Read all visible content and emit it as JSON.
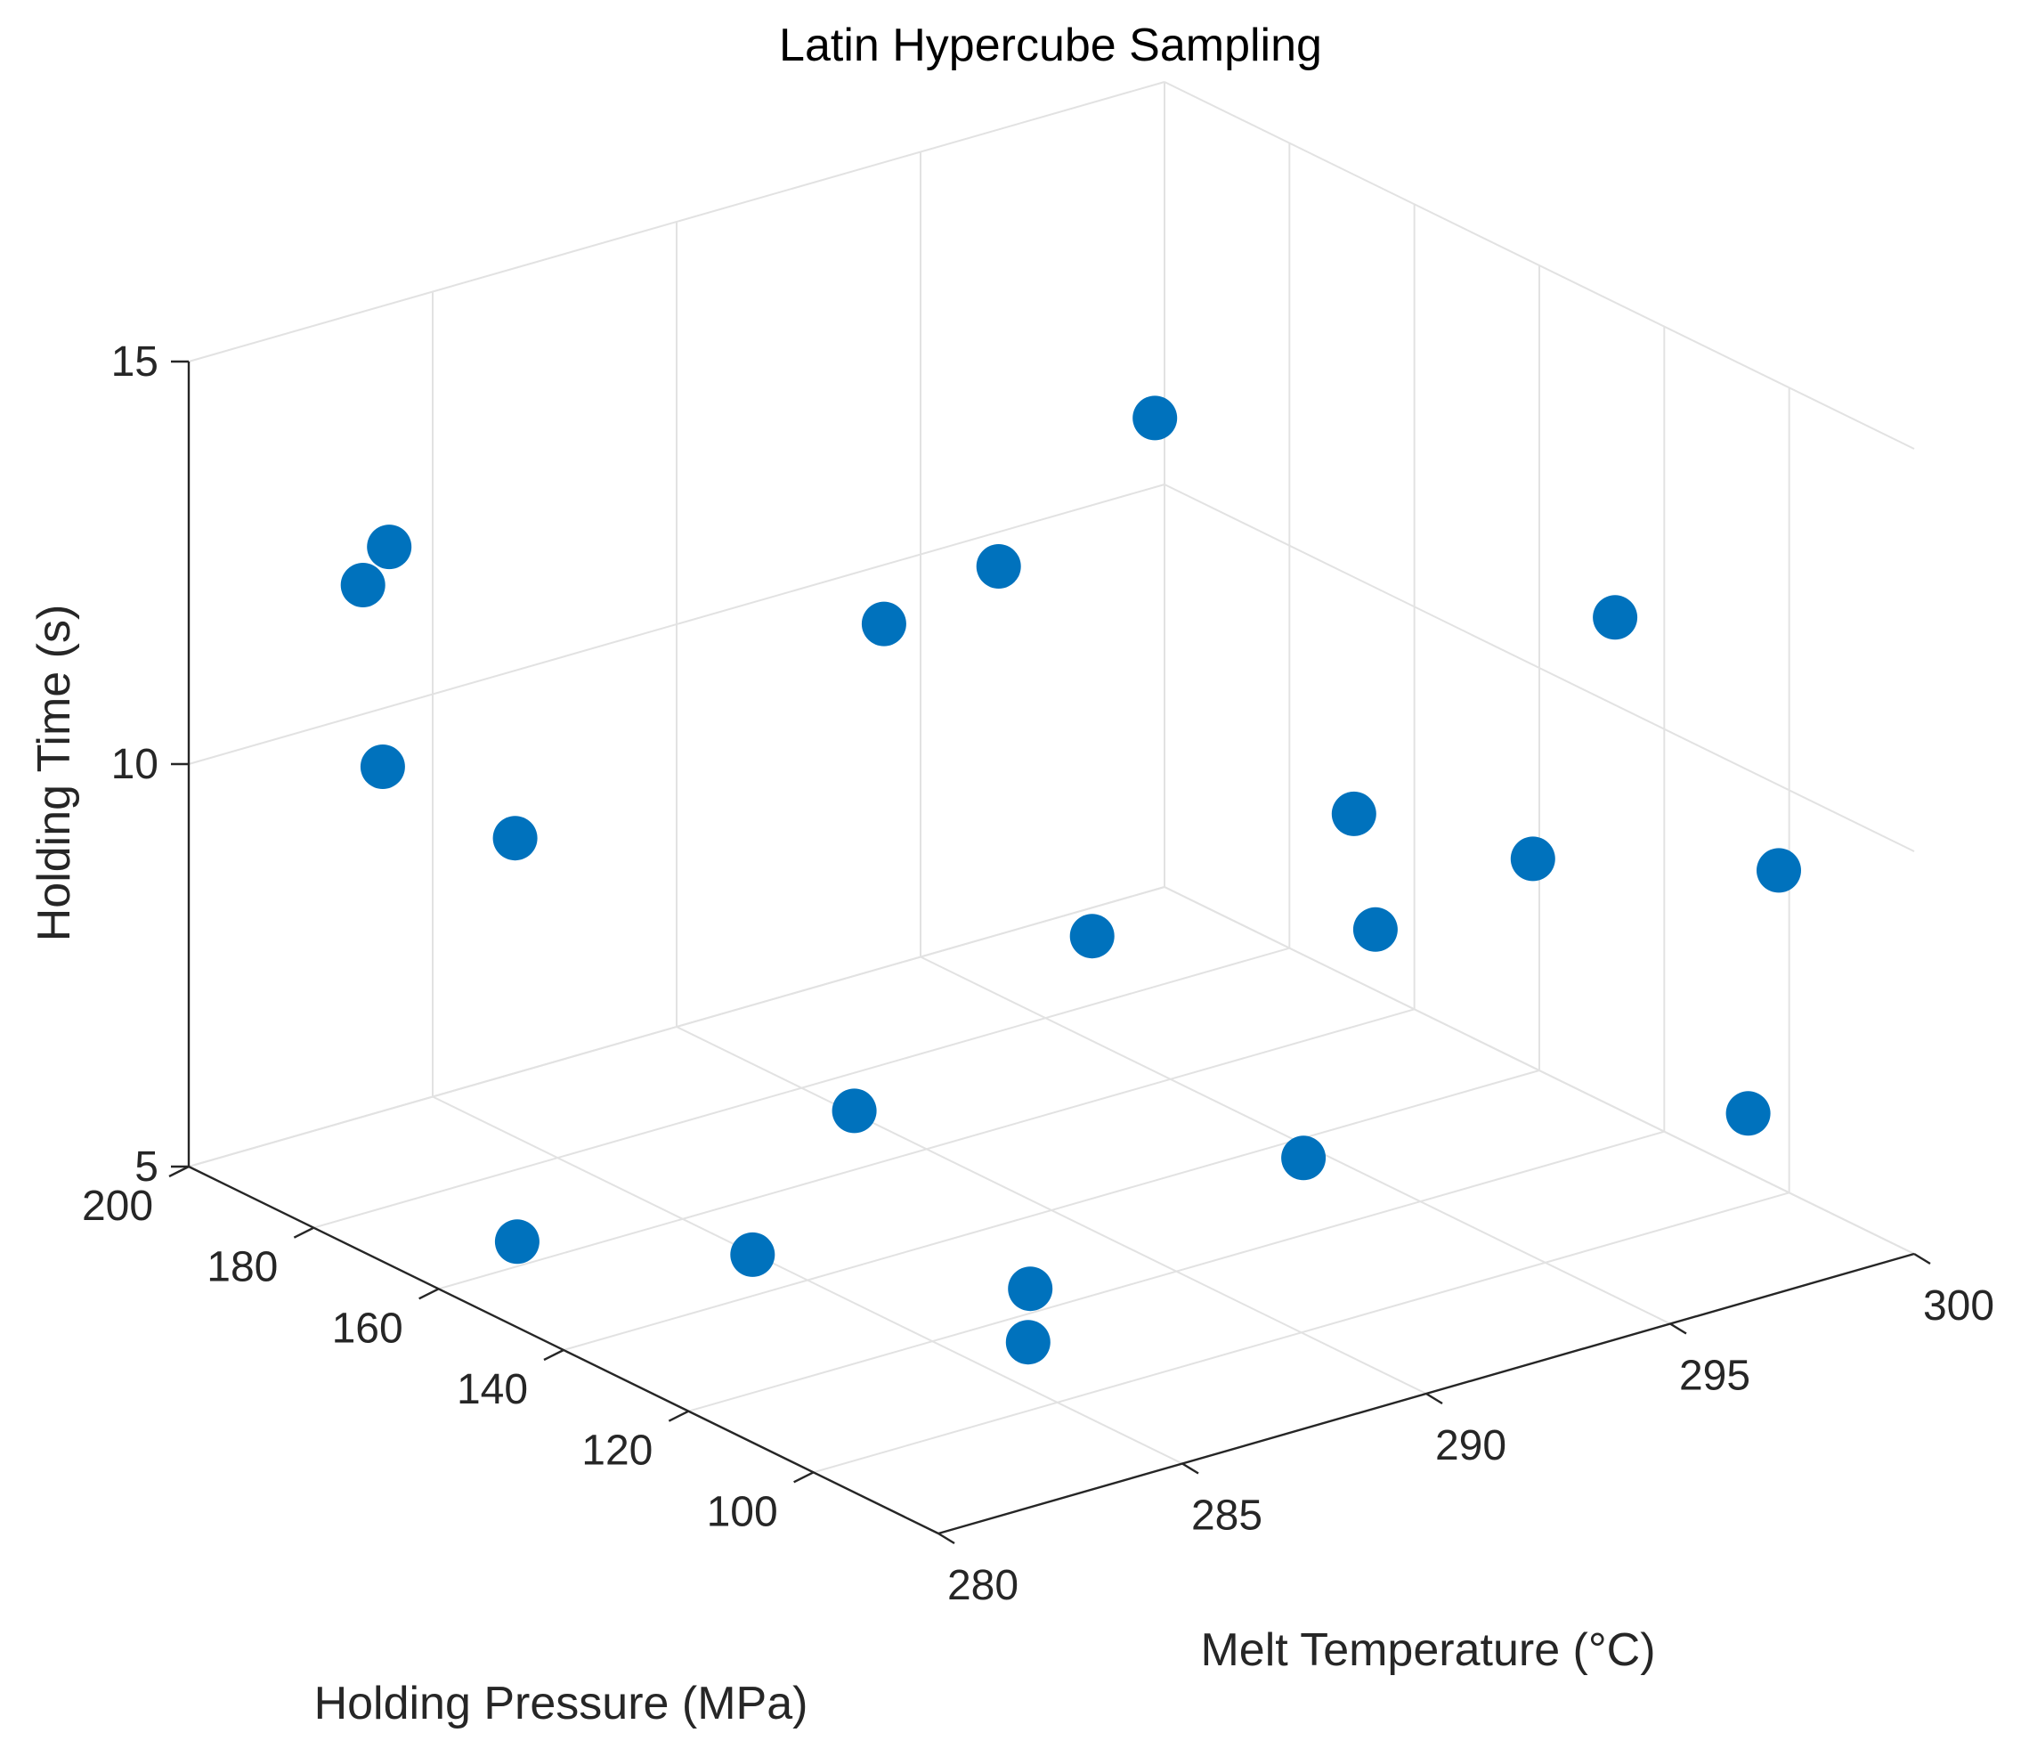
{
  "chart_data": {
    "type": "scatter3d",
    "title": "Latin Hypercube Sampling",
    "xlabel": "Melt Temperature (°C)",
    "ylabel": "Holding Pressure (MPa)",
    "zlabel": "Holding Time (s)",
    "xlim": [
      280,
      300
    ],
    "ylim": [
      80,
      200
    ],
    "zlim": [
      5,
      15
    ],
    "xticks": [
      280,
      285,
      290,
      295,
      300
    ],
    "yticks": [
      100,
      120,
      140,
      160,
      180,
      200
    ],
    "zticks": [
      5,
      10,
      15
    ],
    "xtick_labels": [
      "280",
      "285",
      "290",
      "295",
      "300"
    ],
    "ytick_labels": [
      "100",
      "120",
      "140",
      "160",
      "180",
      "200"
    ],
    "ztick_labels": [
      "5",
      "10",
      "15"
    ],
    "grid": true,
    "marker_color": "#0072BD",
    "points": [
      {
        "x": 280.6,
        "y": 176.8,
        "z": 13.0
      },
      {
        "x": 281.1,
        "y": 176.5,
        "z": 13.4
      },
      {
        "x": 281.8,
        "y": 183.0,
        "z": 10.3
      },
      {
        "x": 282.9,
        "y": 170.4,
        "z": 9.7
      },
      {
        "x": 289.5,
        "y": 162.9,
        "z": 11.5
      },
      {
        "x": 290.8,
        "y": 154.7,
        "z": 12.3
      },
      {
        "x": 289.9,
        "y": 132.7,
        "z": 8.7
      },
      {
        "x": 294.4,
        "y": 157.8,
        "z": 13.4
      },
      {
        "x": 294.6,
        "y": 127.5,
        "z": 9.6
      },
      {
        "x": 296.5,
        "y": 138.9,
        "z": 7.4
      },
      {
        "x": 297.0,
        "y": 117.6,
        "z": 9.0
      },
      {
        "x": 300.4,
        "y": 131.0,
        "z": 10.9
      },
      {
        "x": 300.3,
        "y": 104.0,
        "z": 8.8
      },
      {
        "x": 294.0,
        "y": 130.9,
        "z": 5.3
      },
      {
        "x": 298.8,
        "y": 97.2,
        "z": 6.3
      },
      {
        "x": 287.1,
        "y": 148.9,
        "z": 6.4
      },
      {
        "x": 286.8,
        "y": 118.4,
        "z": 5.4
      },
      {
        "x": 283.9,
        "y": 140.2,
        "z": 5.5
      },
      {
        "x": 286.0,
        "y": 112.5,
        "z": 5.1
      },
      {
        "x": 281.2,
        "y": 156.8,
        "z": 5.5
      }
    ]
  }
}
